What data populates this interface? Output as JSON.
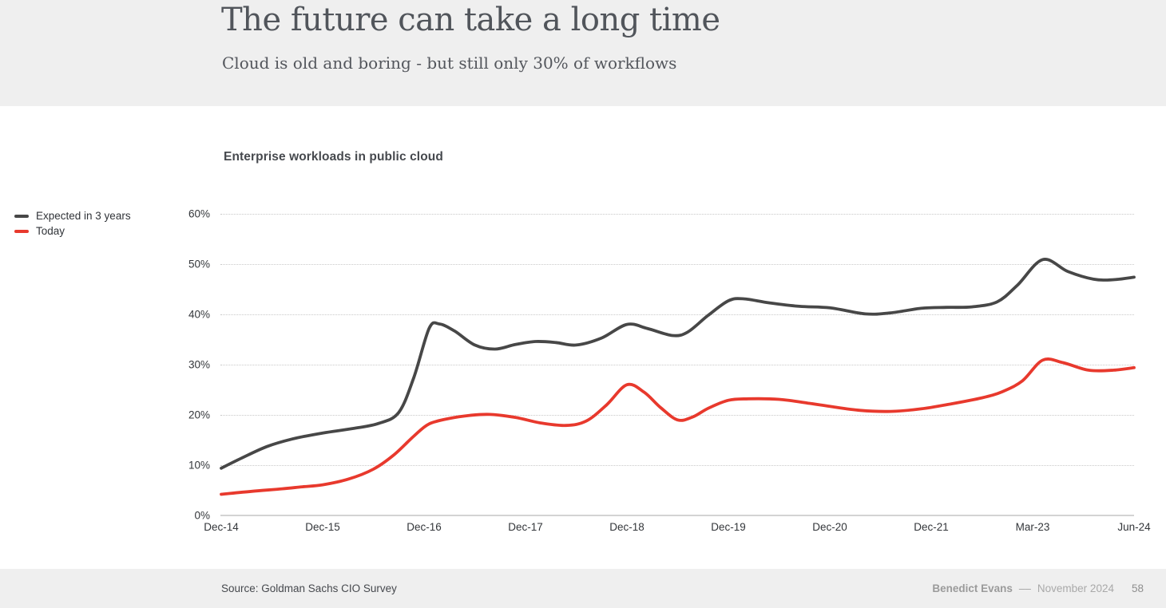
{
  "header": {
    "title": "The future can take a long time",
    "subtitle": "Cloud is old and boring - but still only 30% of workflows"
  },
  "chart_data": {
    "type": "line",
    "title": "Enterprise workloads in public cloud",
    "categories": [
      "Dec-14",
      "Dec-15",
      "Dec-16",
      "Dec-17",
      "Dec-18",
      "Dec-19",
      "Dec-20",
      "Dec-21",
      "Mar-23",
      "Jun-24"
    ],
    "ylim": [
      0,
      60
    ],
    "yticks": [
      {
        "value": 0,
        "label": "0%"
      },
      {
        "value": 10,
        "label": "10%"
      },
      {
        "value": 20,
        "label": "20%"
      },
      {
        "value": 30,
        "label": "30%"
      },
      {
        "value": 40,
        "label": "40%"
      },
      {
        "value": 50,
        "label": "50%"
      },
      {
        "value": 60,
        "label": "60%"
      }
    ],
    "grid": "horizontal-dotted",
    "legend_position": "left",
    "series": [
      {
        "name": "Expected in 3 years",
        "color": "#474747",
        "values_at_categories": [
          9.5,
          16.5,
          37.5,
          34.5,
          38,
          43,
          41.3,
          41.2,
          50.5,
          47.5
        ],
        "points": [
          [
            0,
            9.4
          ],
          [
            0.2,
            11.4
          ],
          [
            0.45,
            13.7
          ],
          [
            0.7,
            15.2
          ],
          [
            1,
            16.4
          ],
          [
            1.3,
            17.3
          ],
          [
            1.55,
            18.3
          ],
          [
            1.75,
            20.5
          ],
          [
            1.9,
            27.5
          ],
          [
            2.05,
            37.2
          ],
          [
            2.15,
            38.1
          ],
          [
            2.3,
            36.7
          ],
          [
            2.5,
            33.9
          ],
          [
            2.7,
            33.1
          ],
          [
            2.9,
            34
          ],
          [
            3.1,
            34.6
          ],
          [
            3.3,
            34.4
          ],
          [
            3.5,
            33.9
          ],
          [
            3.75,
            35.3
          ],
          [
            4,
            38
          ],
          [
            4.2,
            37.2
          ],
          [
            4.45,
            35.8
          ],
          [
            4.6,
            36.5
          ],
          [
            4.8,
            39.8
          ],
          [
            5,
            42.7
          ],
          [
            5.15,
            43.1
          ],
          [
            5.4,
            42.3
          ],
          [
            5.7,
            41.6
          ],
          [
            6,
            41.3
          ],
          [
            6.35,
            40.1
          ],
          [
            6.6,
            40.3
          ],
          [
            6.9,
            41.2
          ],
          [
            7.15,
            41.4
          ],
          [
            7.4,
            41.5
          ],
          [
            7.65,
            42.5
          ],
          [
            7.85,
            45.8
          ],
          [
            8.1,
            50.9
          ],
          [
            8.35,
            48.5
          ],
          [
            8.6,
            47
          ],
          [
            8.8,
            46.9
          ],
          [
            9,
            47.4
          ]
        ]
      },
      {
        "name": "Today",
        "color": "#e8392d",
        "values_at_categories": [
          4.2,
          6,
          18.5,
          19,
          26,
          23,
          21.7,
          21.2,
          30.5,
          29.5
        ],
        "points": [
          [
            0,
            4.2
          ],
          [
            0.3,
            4.8
          ],
          [
            0.6,
            5.3
          ],
          [
            0.8,
            5.7
          ],
          [
            1,
            6.1
          ],
          [
            1.25,
            7.2
          ],
          [
            1.5,
            9.2
          ],
          [
            1.7,
            12
          ],
          [
            1.9,
            15.8
          ],
          [
            2.05,
            18.2
          ],
          [
            2.25,
            19.3
          ],
          [
            2.45,
            19.9
          ],
          [
            2.65,
            20.1
          ],
          [
            2.9,
            19.5
          ],
          [
            3.15,
            18.4
          ],
          [
            3.4,
            17.9
          ],
          [
            3.6,
            18.8
          ],
          [
            3.8,
            22
          ],
          [
            4,
            26
          ],
          [
            4.17,
            24.5
          ],
          [
            4.33,
            21.5
          ],
          [
            4.5,
            19
          ],
          [
            4.65,
            19.6
          ],
          [
            4.8,
            21.3
          ],
          [
            5,
            22.9
          ],
          [
            5.2,
            23.2
          ],
          [
            5.5,
            23.1
          ],
          [
            5.8,
            22.3
          ],
          [
            6,
            21.7
          ],
          [
            6.3,
            20.9
          ],
          [
            6.6,
            20.7
          ],
          [
            6.9,
            21.2
          ],
          [
            7.2,
            22.2
          ],
          [
            7.5,
            23.4
          ],
          [
            7.7,
            24.6
          ],
          [
            7.9,
            26.8
          ],
          [
            8.1,
            30.9
          ],
          [
            8.3,
            30.4
          ],
          [
            8.55,
            28.9
          ],
          [
            8.8,
            28.9
          ],
          [
            9,
            29.4
          ]
        ]
      }
    ]
  },
  "footer": {
    "source": "Source: Goldman Sachs CIO Survey",
    "author": "Benedict Evans",
    "separator": "––",
    "date": "November 2024",
    "page": "58"
  }
}
